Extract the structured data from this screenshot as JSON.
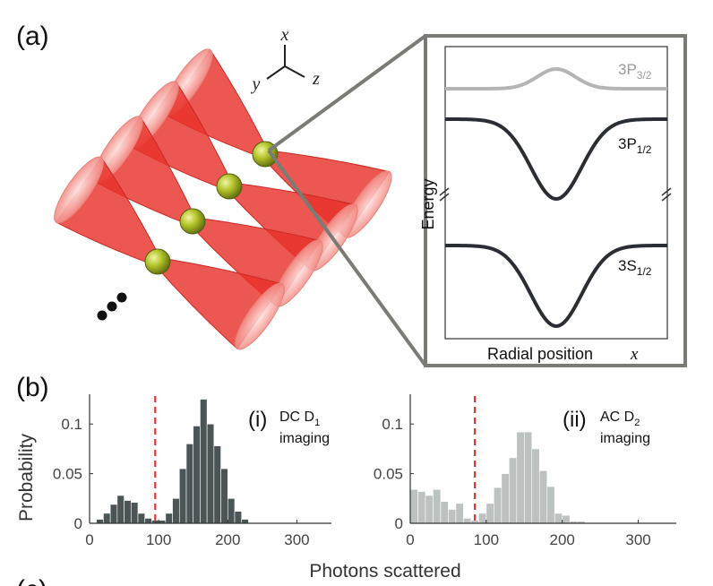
{
  "panel_labels": {
    "a": "(a)",
    "b": "(b)",
    "c_partial": "(c)"
  },
  "axes_triad": {
    "x": "x",
    "y": "y",
    "z": "z"
  },
  "ellipsis": "...",
  "inset": {
    "ylabel": "Energy",
    "xlabel": "Radial position",
    "xlabel_var": "x",
    "levels": [
      {
        "base": "3P",
        "sub": "3/2",
        "color": "#b5b5b5"
      },
      {
        "base": "3P",
        "sub": "1/2",
        "color": "#2a2d34"
      },
      {
        "base": "3S",
        "sub": "1/2",
        "color": "#2a2d34"
      }
    ]
  },
  "colors": {
    "beam": "#e8322b",
    "atom": "#b4c42a",
    "hist_dark": "#4b5457",
    "hist_light": "#bcc2c0",
    "threshold": "#e0362b",
    "frame": "#7b7b75"
  },
  "chart_data": [
    {
      "type": "bar",
      "panel": "(i)",
      "label_line1": "DC D",
      "label_sub": "1",
      "label_line2": "imaging",
      "ylabel": "Probability",
      "xlabel": "Photons scattered",
      "xlim": [
        0,
        350
      ],
      "ylim": [
        0,
        0.13
      ],
      "xticks": [
        "0",
        "100",
        "200",
        "300"
      ],
      "yticks": [
        "0",
        "0.05",
        "0.1"
      ],
      "bin_width": 10,
      "threshold": 95,
      "bin_starts": [
        10,
        20,
        30,
        40,
        50,
        60,
        70,
        80,
        90,
        100,
        110,
        120,
        130,
        140,
        150,
        160,
        170,
        180,
        190,
        200,
        210,
        220
      ],
      "values": [
        0.004,
        0.01,
        0.019,
        0.028,
        0.023,
        0.021,
        0.01,
        0.005,
        0.003,
        0.003,
        0.01,
        0.025,
        0.055,
        0.08,
        0.098,
        0.125,
        0.1,
        0.078,
        0.055,
        0.025,
        0.012,
        0.004
      ]
    },
    {
      "type": "bar",
      "panel": "(ii)",
      "label_line1": "AC D",
      "label_sub": "2",
      "label_line2": "imaging",
      "ylabel": "Probability",
      "xlabel": "Photons scattered",
      "xlim": [
        0,
        350
      ],
      "ylim": [
        0,
        0.13
      ],
      "xticks": [
        "0",
        "100",
        "200",
        "300"
      ],
      "yticks": [
        "0",
        "0.05",
        "0.1"
      ],
      "bin_width": 10,
      "threshold": 85,
      "bin_starts": [
        0,
        10,
        20,
        30,
        40,
        50,
        60,
        70,
        80,
        90,
        100,
        110,
        120,
        130,
        140,
        150,
        160,
        170,
        180,
        190,
        200,
        210,
        220
      ],
      "values": [
        0.034,
        0.032,
        0.028,
        0.034,
        0.022,
        0.014,
        0.02,
        0.005,
        0.003,
        0.01,
        0.02,
        0.036,
        0.05,
        0.066,
        0.092,
        0.092,
        0.075,
        0.053,
        0.037,
        0.01,
        0.008,
        0.002,
        0.002
      ]
    }
  ]
}
